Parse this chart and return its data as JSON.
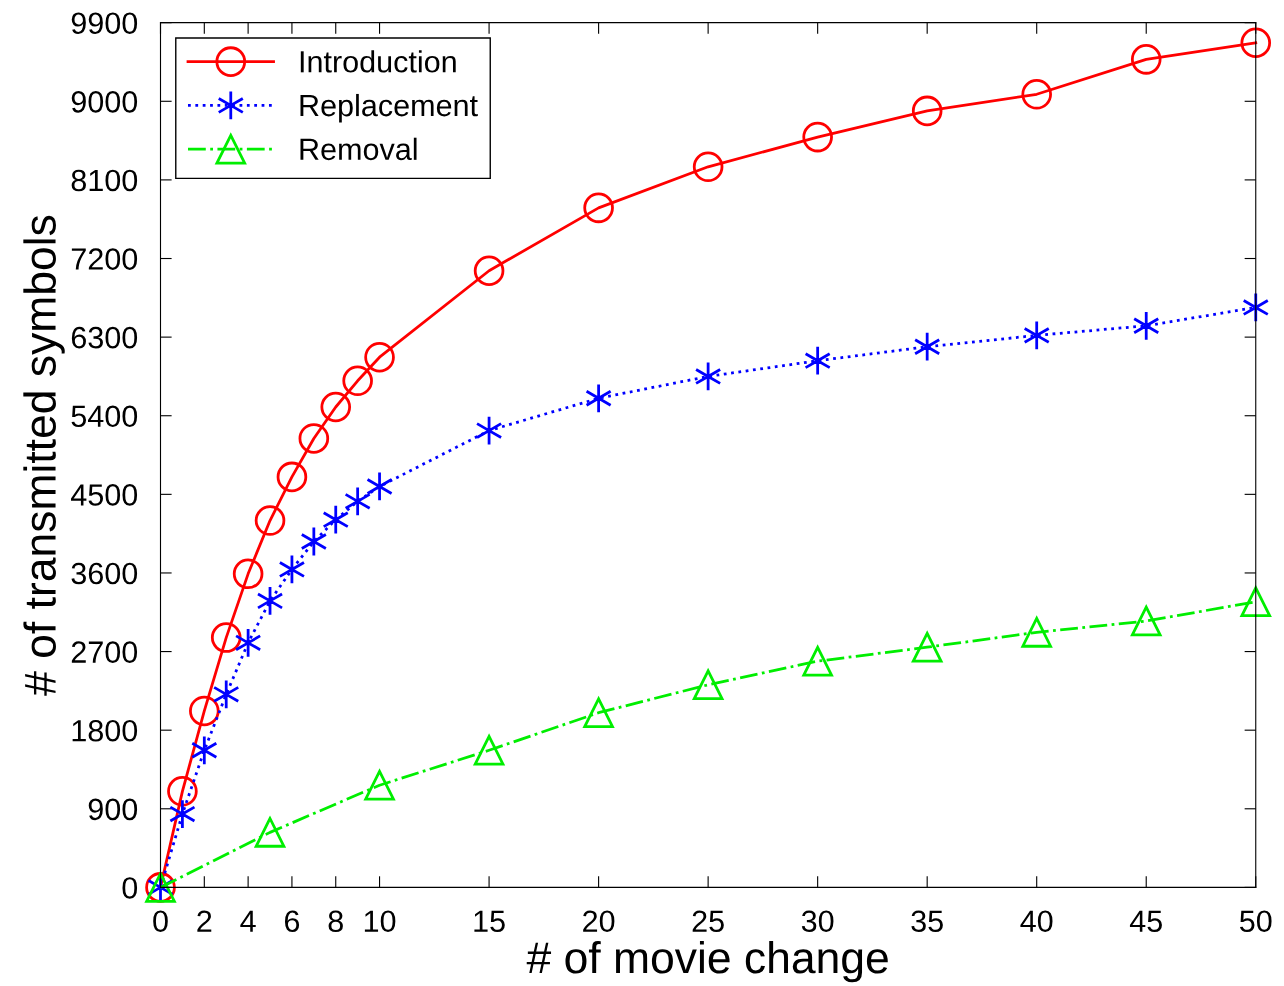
{
  "chart_data": {
    "type": "line",
    "xlabel": "# of movie change",
    "ylabel": "# of transmitted symbols",
    "xlim": [
      0,
      50
    ],
    "xticks": [
      0,
      2,
      4,
      6,
      8,
      10,
      15,
      20,
      25,
      30,
      35,
      40,
      45,
      50
    ],
    "ylim": [
      0,
      9900
    ],
    "yticks": [
      0,
      900,
      1800,
      2700,
      3600,
      4500,
      5400,
      6300,
      7200,
      8100,
      9000,
      9900
    ],
    "grid": false,
    "legend": "top left",
    "series": [
      {
        "name": "Introduction",
        "color": "#ff0000",
        "marker": "circle",
        "line_style": "solid",
        "x": [
          0,
          1,
          2,
          3,
          4,
          5,
          6,
          7,
          8,
          9,
          10,
          15,
          20,
          25,
          30,
          35,
          40,
          45,
          50
        ],
        "values": [
          0,
          1100,
          2020,
          2860,
          3590,
          4200,
          4700,
          5140,
          5500,
          5800,
          6070,
          7060,
          7780,
          8250,
          8590,
          8890,
          9080,
          9480,
          9670
        ]
      },
      {
        "name": "Replacement",
        "color": "#0000ff",
        "marker": "cross",
        "line_style": "dotted",
        "x": [
          0,
          1,
          2,
          3,
          4,
          5,
          6,
          7,
          8,
          9,
          10,
          15,
          20,
          25,
          30,
          35,
          40,
          45,
          50
        ],
        "values": [
          0,
          840,
          1570,
          2210,
          2800,
          3280,
          3640,
          3960,
          4210,
          4420,
          4590,
          5230,
          5600,
          5850,
          6030,
          6190,
          6320,
          6430,
          6640
        ]
      },
      {
        "name": "Removal",
        "color": "#00ee00",
        "marker": "triangle",
        "line_style": "dashdot",
        "x": [
          0,
          5,
          10,
          15,
          20,
          25,
          30,
          35,
          40,
          45,
          50
        ],
        "values": [
          0,
          630,
          1170,
          1570,
          2000,
          2320,
          2590,
          2750,
          2920,
          3050,
          3270
        ]
      }
    ]
  }
}
